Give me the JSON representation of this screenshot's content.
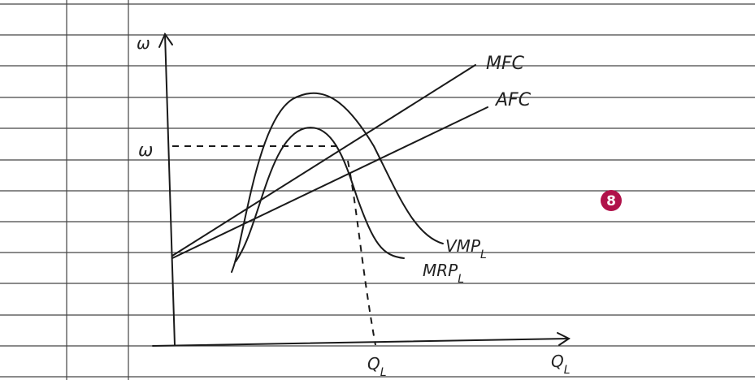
{
  "diagram": {
    "y_axis_label": "ω",
    "wage_label": "ω",
    "curves": [
      {
        "name": "MFC"
      },
      {
        "name": "AFC"
      },
      {
        "name": "VMP",
        "sub": "L"
      },
      {
        "name": "MRP",
        "sub": "L"
      }
    ],
    "x_axis_label": {
      "name": "Q",
      "sub": "L"
    },
    "quantity_label": {
      "name": "Q",
      "sub": "L"
    },
    "badge": "8"
  }
}
